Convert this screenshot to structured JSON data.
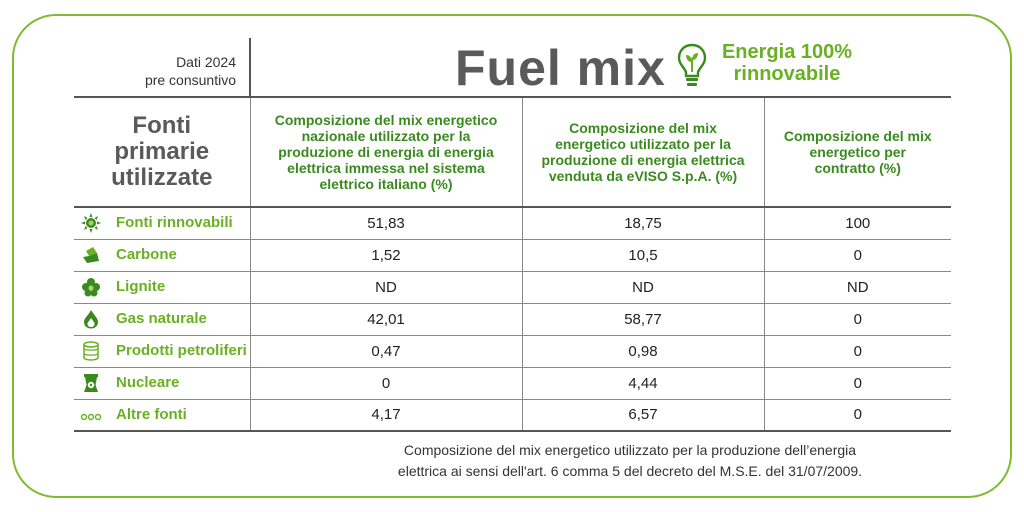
{
  "header": {
    "dati_line1": "Dati 2024",
    "dati_line2": "pre consuntivo",
    "title": "Fuel mix",
    "badge_line1": "Energia 100%",
    "badge_line2": "rinnovabile",
    "badge_icon": "lightbulb-leaf-icon"
  },
  "table": {
    "col0_header": [
      "Fonti",
      "primarie",
      "utilizzate"
    ],
    "col1_header": "Composizione del mix energetico nazionale utilizzato per la produzione di energia di energia elettrica immessa nel sistema elettrico italiano (%)",
    "col2_header": "Composizione del mix energetico utilizzato per la produzione di energia elettrica venduta da eVISO S.p.A. (%)",
    "col3_header": "Composizione del mix energetico per contratto (%)",
    "rows": [
      {
        "source": "Fonti rinnovabili",
        "icon": "sun-icon",
        "national": "51,83",
        "eviso": "18,75",
        "contract": "100"
      },
      {
        "source": "Carbone",
        "icon": "coal-icon",
        "national": "1,52",
        "eviso": "10,5",
        "contract": "0"
      },
      {
        "source": "Lignite",
        "icon": "lignite-icon",
        "national": "ND",
        "eviso": "ND",
        "contract": "ND"
      },
      {
        "source": "Gas naturale",
        "icon": "flame-icon",
        "national": "42,01",
        "eviso": "58,77",
        "contract": "0"
      },
      {
        "source": "Prodotti petroliferi",
        "icon": "oil-barrel-icon",
        "national": "0,47",
        "eviso": "0,98",
        "contract": "0"
      },
      {
        "source": "Nucleare",
        "icon": "nuclear-plant-icon",
        "national": "0",
        "eviso": "4,44",
        "contract": "0"
      },
      {
        "source": "Altre fonti",
        "icon": "dots-icon",
        "national": "4,17",
        "eviso": "6,57",
        "contract": "0"
      }
    ]
  },
  "footnote": {
    "line1": "Composizione del mix energetico utilizzato per la produzione dell’energia",
    "line2": "elettrica ai sensi dell'art. 6 comma 5 del decreto del M.S.E. del 31/07/2009."
  },
  "colors": {
    "accent_green": "#6ab023",
    "header_green": "#3a8a1f",
    "frame_green": "#7dbb2f",
    "title_gray": "#5a5a5a"
  }
}
